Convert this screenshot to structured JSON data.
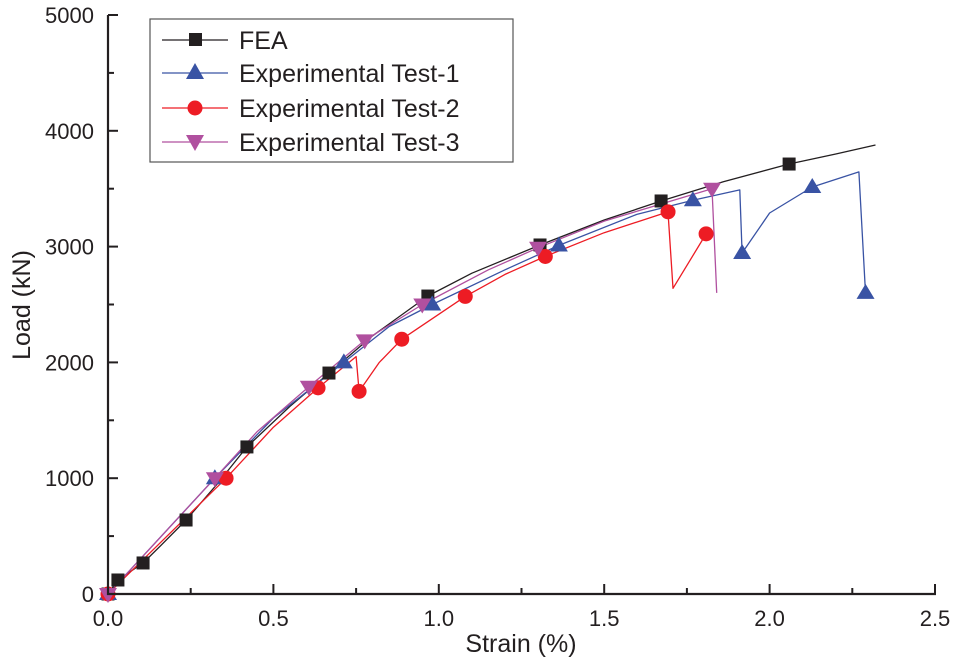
{
  "chart_data": {
    "type": "line",
    "title": "",
    "xlabel": "Strain (%)",
    "ylabel": "Load (kN)",
    "xlim": [
      0,
      2.5
    ],
    "ylim": [
      0,
      5000
    ],
    "x_ticks": [
      0.0,
      0.5,
      1.0,
      1.5,
      2.0,
      2.5
    ],
    "x_tick_labels": [
      "0.0",
      "0.5",
      "1.0",
      "1.5",
      "2.0",
      "2.5"
    ],
    "y_ticks": [
      0,
      1000,
      2000,
      3000,
      4000,
      5000
    ],
    "y_tick_labels": [
      "0",
      "1000",
      "2000",
      "3000",
      "4000",
      "5000"
    ],
    "grid": false,
    "legend_position": "top-left",
    "series": [
      {
        "name": "FEA",
        "color": "#231f20",
        "marker": "square",
        "line": [
          [
            0,
            0
          ],
          [
            0.03,
            121
          ],
          [
            0.106,
            268
          ],
          [
            0.16,
            420
          ],
          [
            0.236,
            639
          ],
          [
            0.33,
            950
          ],
          [
            0.42,
            1270
          ],
          [
            0.55,
            1620
          ],
          [
            0.668,
            1908
          ],
          [
            0.8,
            2230
          ],
          [
            0.967,
            2573
          ],
          [
            1.1,
            2770
          ],
          [
            1.306,
            3014
          ],
          [
            1.5,
            3230
          ],
          [
            1.672,
            3394
          ],
          [
            1.86,
            3560
          ],
          [
            2.059,
            3713
          ],
          [
            2.2,
            3800
          ],
          [
            2.32,
            3877
          ]
        ],
        "markers": [
          [
            0.0,
            0
          ],
          [
            0.03,
            121
          ],
          [
            0.106,
            268
          ],
          [
            0.236,
            639
          ],
          [
            0.42,
            1270
          ],
          [
            0.668,
            1908
          ],
          [
            0.967,
            2573
          ],
          [
            1.306,
            3014
          ],
          [
            1.672,
            3394
          ],
          [
            2.059,
            3713
          ]
        ]
      },
      {
        "name": "Experimental Test-1",
        "color": "#3953a4",
        "marker": "triangle-up",
        "line": [
          [
            0,
            0
          ],
          [
            0.323,
            1000
          ],
          [
            0.5,
            1520
          ],
          [
            0.713,
            2000
          ],
          [
            0.85,
            2310
          ],
          [
            0.98,
            2500
          ],
          [
            1.2,
            2800
          ],
          [
            1.363,
            3010
          ],
          [
            1.6,
            3280
          ],
          [
            1.768,
            3400
          ],
          [
            1.91,
            3490
          ],
          [
            1.917,
            2945
          ],
          [
            2.0,
            3290
          ],
          [
            2.129,
            3515
          ],
          [
            2.27,
            3645
          ],
          [
            2.29,
            2600
          ]
        ],
        "markers": [
          [
            0.0,
            0
          ],
          [
            0.323,
            1000
          ],
          [
            0.713,
            2000
          ],
          [
            0.98,
            2500
          ],
          [
            1.363,
            3010
          ],
          [
            1.768,
            3400
          ],
          [
            1.917,
            2945
          ],
          [
            2.129,
            3515
          ],
          [
            2.29,
            2600
          ]
        ]
      },
      {
        "name": "Experimental Test-2",
        "color": "#ed1c24",
        "marker": "circle",
        "line": [
          [
            0,
            0
          ],
          [
            0.357,
            1000
          ],
          [
            0.5,
            1440
          ],
          [
            0.635,
            1780
          ],
          [
            0.75,
            2050
          ],
          [
            0.759,
            1750
          ],
          [
            0.82,
            2000
          ],
          [
            0.888,
            2200
          ],
          [
            1.08,
            2570
          ],
          [
            1.2,
            2760
          ],
          [
            1.322,
            2915
          ],
          [
            1.5,
            3120
          ],
          [
            1.693,
            3300
          ],
          [
            1.708,
            2640
          ],
          [
            1.808,
            3110
          ]
        ],
        "markers": [
          [
            0.0,
            0
          ],
          [
            0.357,
            1000
          ],
          [
            0.635,
            1780
          ],
          [
            0.759,
            1750
          ],
          [
            0.888,
            2200
          ],
          [
            1.08,
            2570
          ],
          [
            1.322,
            2915
          ],
          [
            1.693,
            3300
          ],
          [
            1.808,
            3110
          ]
        ]
      },
      {
        "name": "Experimental Test-3",
        "color": "#b0509f",
        "marker": "triangle-down",
        "line": [
          [
            0,
            0
          ],
          [
            0.323,
            1000
          ],
          [
            0.45,
            1400
          ],
          [
            0.607,
            1790
          ],
          [
            0.776,
            2190
          ],
          [
            0.95,
            2500
          ],
          [
            1.15,
            2800
          ],
          [
            1.3,
            2990
          ],
          [
            1.5,
            3220
          ],
          [
            1.826,
            3500
          ],
          [
            1.84,
            2600
          ]
        ],
        "markers": [
          [
            0.0,
            0
          ],
          [
            0.323,
            1000
          ],
          [
            0.607,
            1790
          ],
          [
            0.776,
            2190
          ],
          [
            0.95,
            2500
          ],
          [
            1.3,
            2990
          ],
          [
            1.826,
            3500
          ]
        ]
      }
    ]
  }
}
